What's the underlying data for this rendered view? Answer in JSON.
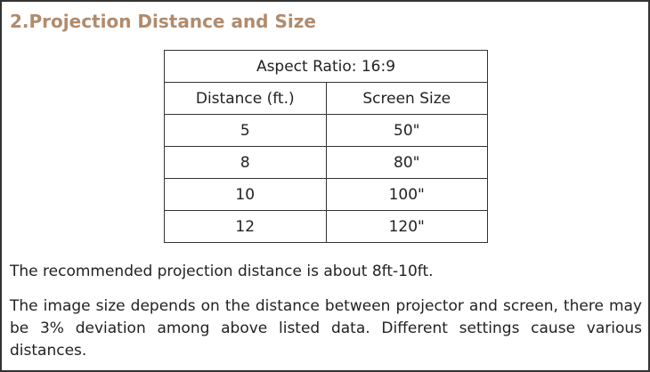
{
  "header": {
    "title": "2.Projection Distance and Size"
  },
  "table": {
    "caption": "Aspect Ratio: 16:9",
    "columns": [
      "Distance (ft.)",
      "Screen Size"
    ],
    "rows": [
      [
        "5",
        "50\""
      ],
      [
        "8",
        "80\""
      ],
      [
        "10",
        "100\""
      ],
      [
        "12",
        "120\""
      ]
    ]
  },
  "paragraphs": [
    "The recommended projection distance is about 8ft-10ft.",
    "The image size depends on the distance between projector and screen, there may be 3% deviation among above listed data. Different settings cause various distances."
  ]
}
